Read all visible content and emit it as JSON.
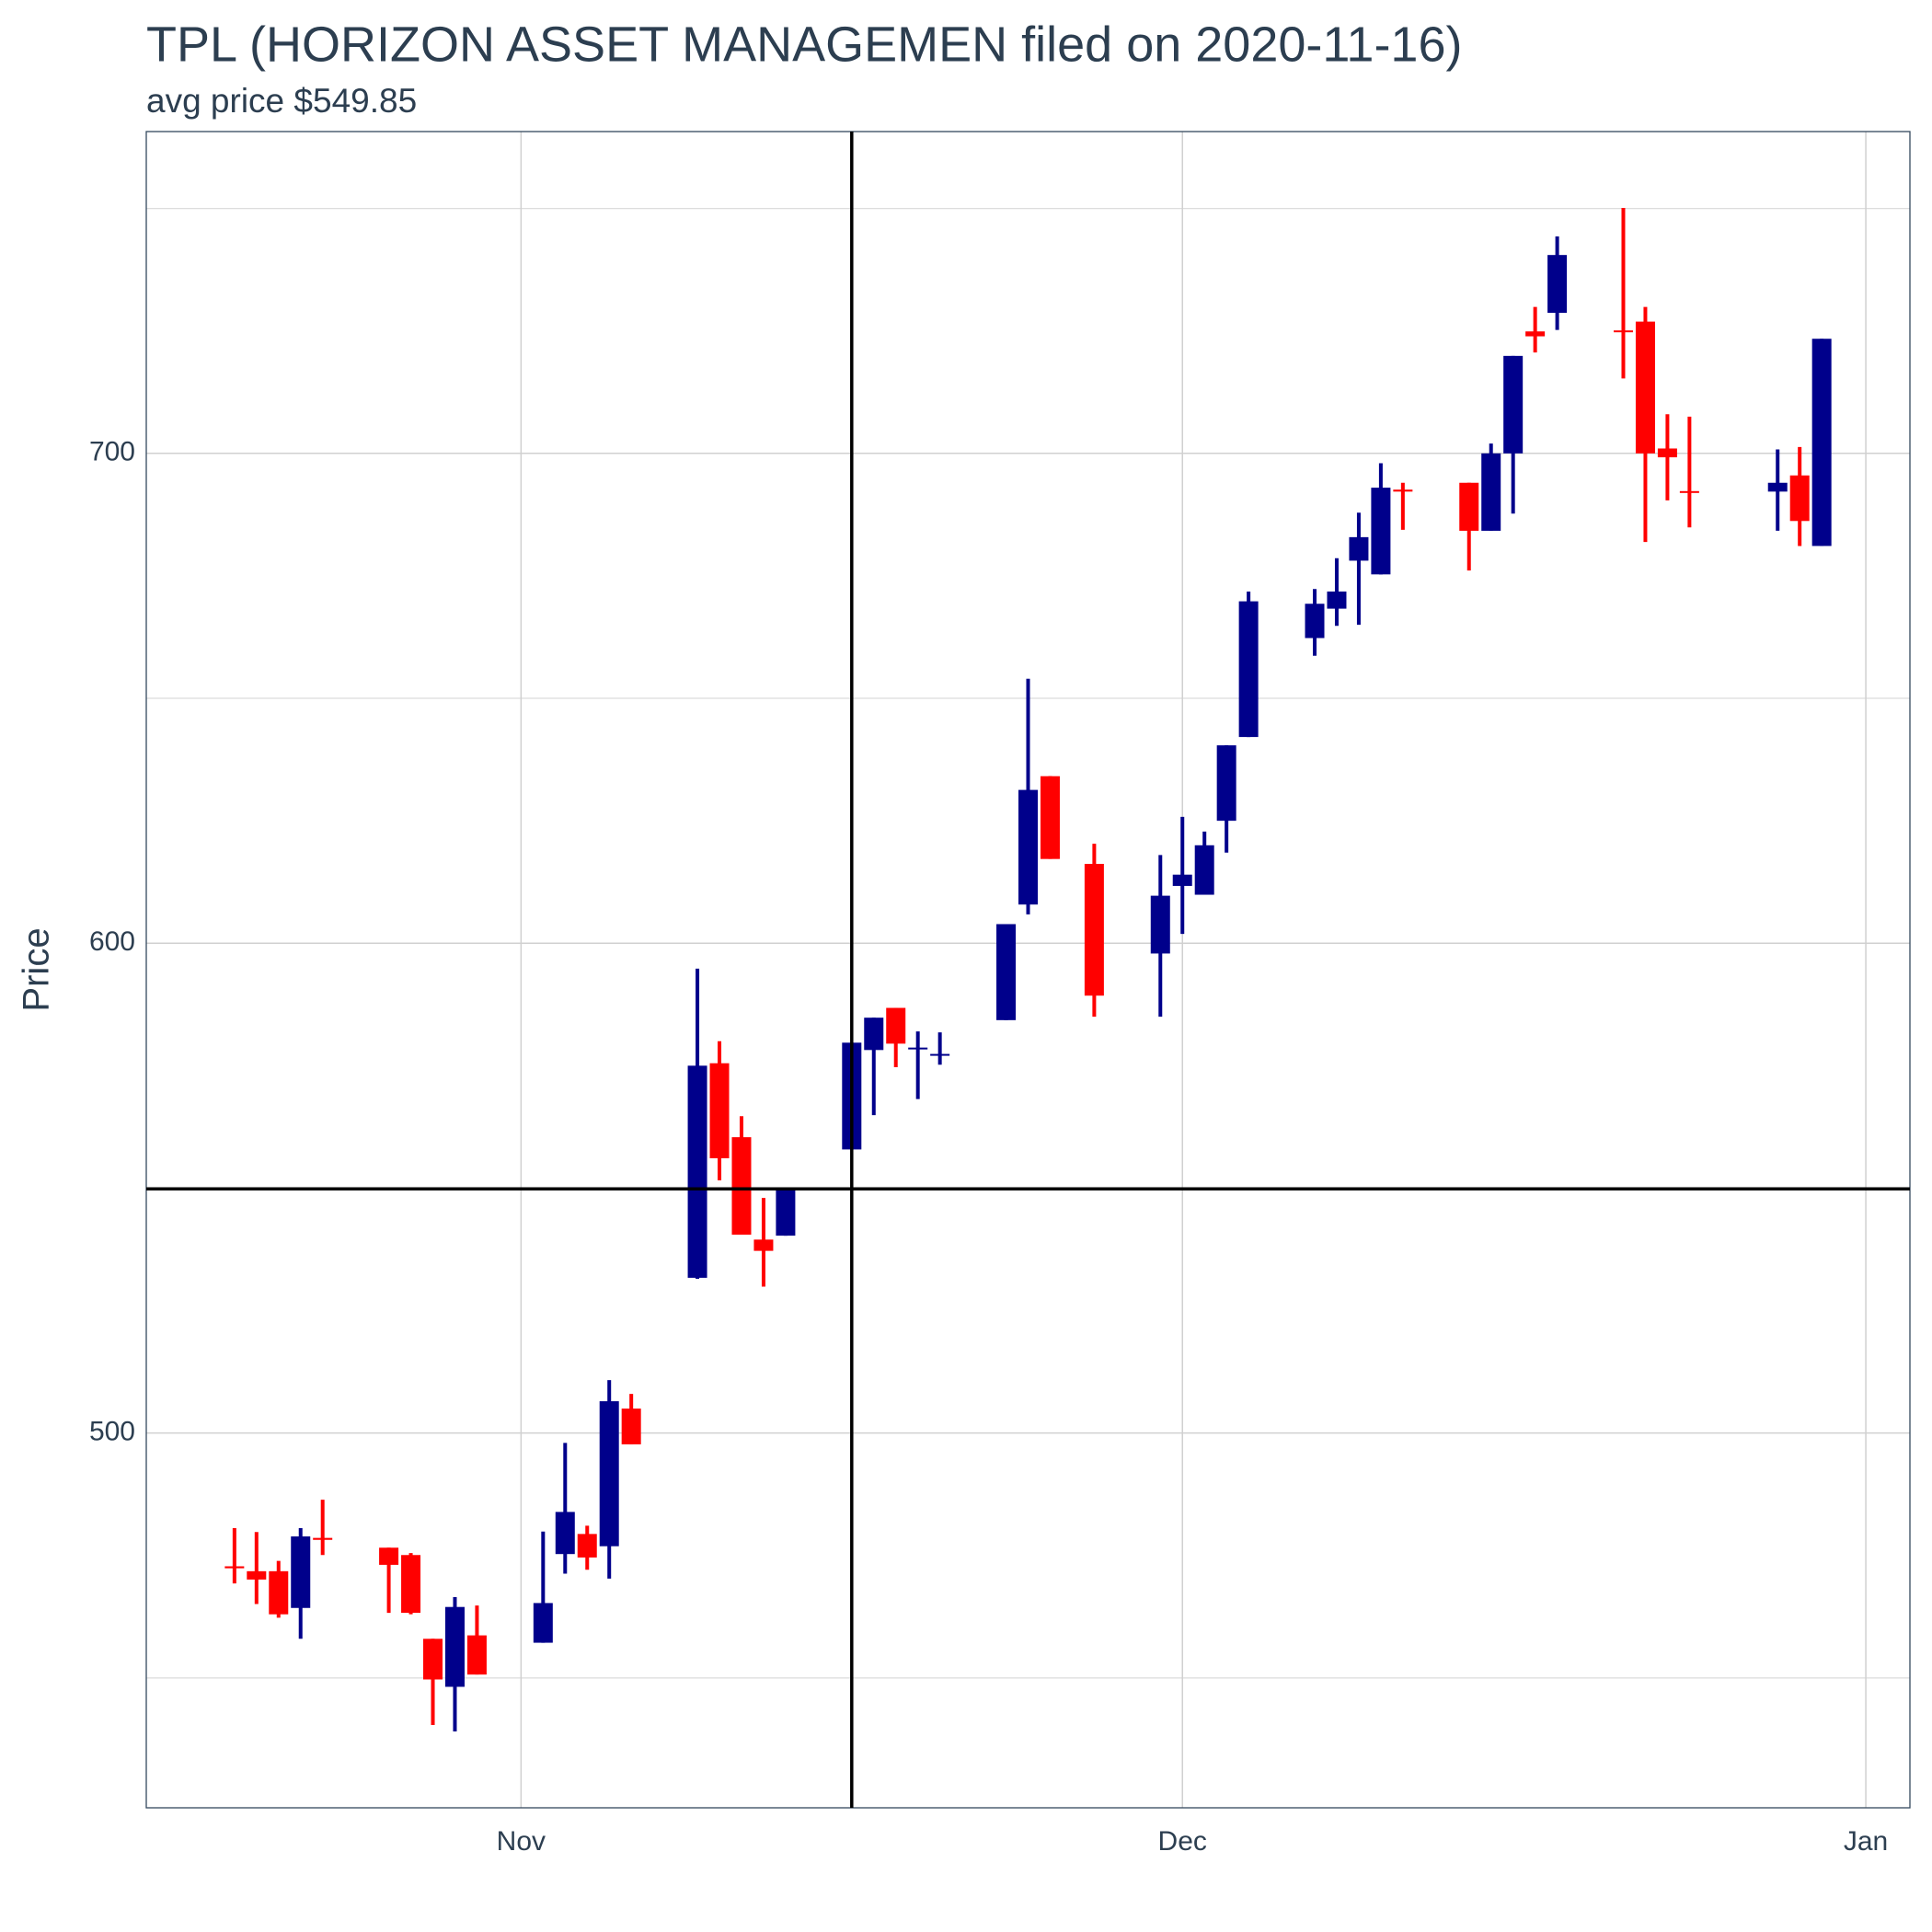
{
  "chart_data": {
    "type": "candlestick",
    "title": "TPL (HORIZON ASSET MANAGEMEN filed on 2020-11-16)",
    "subtitle": "avg price $549.85",
    "y_label": "Price",
    "x": [
      "2020-10-19",
      "2020-10-20",
      "2020-10-21",
      "2020-10-22",
      "2020-10-23",
      "2020-10-26",
      "2020-10-27",
      "2020-10-28",
      "2020-10-29",
      "2020-10-30",
      "2020-11-02",
      "2020-11-03",
      "2020-11-04",
      "2020-11-05",
      "2020-11-06",
      "2020-11-09",
      "2020-11-10",
      "2020-11-11",
      "2020-11-12",
      "2020-11-13",
      "2020-11-16",
      "2020-11-17",
      "2020-11-18",
      "2020-11-19",
      "2020-11-20",
      "2020-11-23",
      "2020-11-24",
      "2020-11-25",
      "2020-11-27",
      "2020-11-30",
      "2020-12-01",
      "2020-12-02",
      "2020-12-03",
      "2020-12-04",
      "2020-12-07",
      "2020-12-08",
      "2020-12-09",
      "2020-12-10",
      "2020-12-11",
      "2020-12-14",
      "2020-12-15",
      "2020-12-16",
      "2020-12-17",
      "2020-12-18",
      "2020-12-21",
      "2020-12-22",
      "2020-12-23",
      "2020-12-24",
      "2020-12-28",
      "2020-12-29",
      "2020-12-30"
    ],
    "open": [
      472.8,
      471.8,
      471.8,
      464.3,
      478.6,
      476.6,
      475.1,
      458.0,
      448.2,
      458.7,
      457.2,
      475.3,
      479.4,
      476.9,
      505.0,
      531.7,
      575.5,
      560.4,
      539.5,
      540.3,
      557.9,
      578.2,
      586.8,
      578.5,
      577.2,
      584.3,
      607.9,
      634.1,
      616.2,
      597.9,
      611.7,
      609.9,
      625.0,
      642.1,
      662.3,
      668.3,
      678.1,
      675.3,
      692.6,
      694.0,
      684.2,
      700.0,
      724.9,
      728.7,
      725.1,
      726.9,
      701.0,
      692.3,
      692.2,
      695.5,
      681.1
    ],
    "high": [
      480.6,
      479.8,
      473.9,
      480.6,
      486.4,
      476.6,
      475.5,
      458.0,
      466.5,
      464.8,
      479.9,
      498.0,
      481.1,
      510.8,
      508.0,
      594.8,
      580.0,
      564.7,
      548.0,
      550.1,
      579.7,
      584.8,
      586.8,
      582.0,
      581.8,
      603.9,
      654.0,
      634.1,
      620.3,
      618.0,
      625.8,
      622.8,
      640.4,
      671.8,
      672.3,
      678.6,
      687.9,
      698.0,
      694.0,
      694.0,
      702.0,
      719.9,
      729.9,
      744.3,
      750.1,
      729.9,
      708.0,
      707.5,
      700.8,
      701.3,
      723.4
    ],
    "low": [
      469.3,
      465.1,
      462.3,
      458.0,
      475.1,
      463.3,
      463.0,
      440.4,
      439.1,
      450.7,
      457.2,
      471.3,
      472.1,
      470.3,
      497.7,
      531.5,
      551.6,
      540.5,
      529.9,
      540.3,
      557.9,
      564.9,
      574.7,
      568.2,
      575.2,
      584.3,
      605.9,
      617.2,
      585.0,
      585.0,
      601.9,
      609.9,
      618.5,
      642.1,
      658.7,
      664.8,
      665.0,
      675.3,
      684.4,
      676.1,
      684.2,
      687.7,
      720.6,
      725.2,
      715.3,
      681.9,
      690.4,
      684.9,
      684.2,
      681.1,
      681.1
    ],
    "close": [
      472.4,
      470.1,
      463.0,
      478.9,
      478.2,
      473.1,
      463.3,
      449.7,
      464.5,
      450.7,
      465.3,
      483.9,
      474.6,
      506.5,
      497.7,
      575.0,
      556.1,
      540.5,
      537.2,
      550.1,
      579.7,
      584.8,
      579.5,
      578.7,
      577.4,
      603.9,
      631.3,
      617.2,
      589.3,
      609.7,
      614.0,
      620.0,
      640.4,
      669.8,
      669.3,
      671.8,
      682.9,
      693.0,
      692.2,
      684.2,
      700.0,
      719.9,
      723.9,
      740.5,
      724.9,
      700.0,
      699.2,
      692.1,
      694.0,
      686.2,
      723.4
    ],
    "up_color": "#00008b",
    "down_color": "#ff0000",
    "xlim": [
      "2020-10-15",
      "2021-01-03"
    ],
    "xticks": [
      {
        "value": "2020-11-01",
        "label": "Nov"
      },
      {
        "value": "2020-12-01",
        "label": "Dec"
      },
      {
        "value": "2021-01-01",
        "label": "Jan"
      }
    ],
    "ylim": [
      423.5,
      765.7
    ],
    "yticks": [
      500,
      600,
      700
    ],
    "minor_yticks": [
      450,
      550,
      650,
      750
    ],
    "hline": 549.85,
    "vline": "2020-11-16",
    "grid": true
  }
}
